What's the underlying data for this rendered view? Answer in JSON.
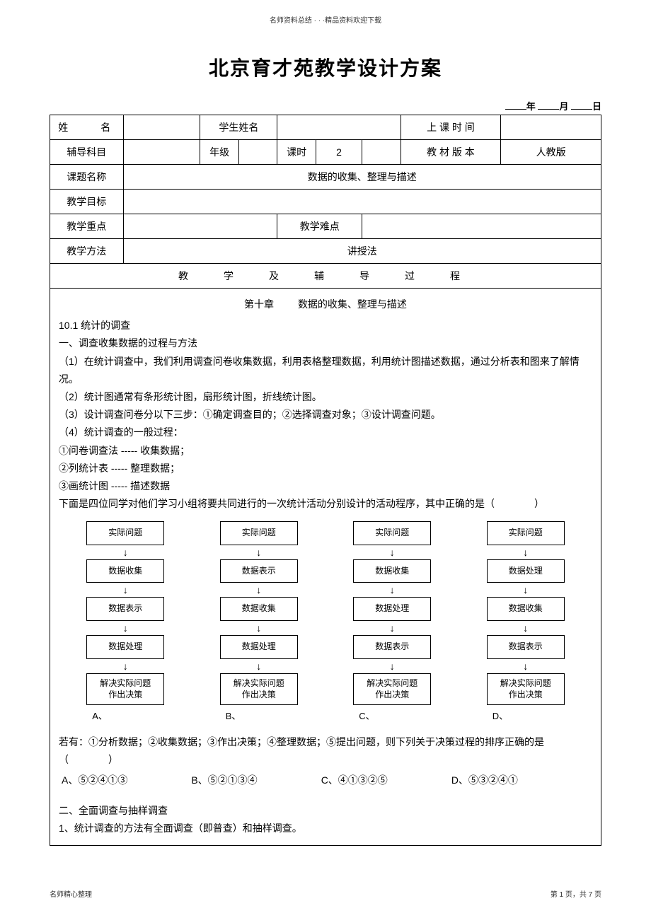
{
  "header_note": "名师资料总结 · · ·精品资料欢迎下载",
  "title": "北京育才苑教学设计方案",
  "date": {
    "year_label": "年",
    "month_label": "月",
    "day_label": "日"
  },
  "info_table": {
    "r1": {
      "name_label": "姓　　名",
      "student_label": "学生姓名",
      "time_label": "上 课 时 间"
    },
    "r2": {
      "subject_label": "辅导科目",
      "grade_label": "年级",
      "hours_label": "课时",
      "hours_val": "2",
      "textbook_label": "教 材 版 本",
      "textbook_val": "人教版"
    },
    "r3": {
      "topic_label": "课题名称",
      "topic_val": "数据的收集、整理与描述"
    },
    "r4": {
      "goal_label": "教学目标"
    },
    "r5": {
      "focus_label": "教学重点",
      "difficulty_label": "教学难点"
    },
    "r6": {
      "method_label": "教学方法",
      "method_val": "讲授法"
    }
  },
  "section_header": "教　学　及　辅　导　过　程",
  "chapter": {
    "no": "第十章",
    "name": "数据的收集、整理与描述"
  },
  "body": {
    "h1": "10.1 统计的调查",
    "h2": "一、调查收集数据的过程与方法",
    "p1": "（1）在统计调查中，我们利用调查问卷收集数据，利用表格整理数据，利用统计图描述数据，通过分析表和图来了解情况。",
    "p2": "（2）统计图通常有条形统计图，扇形统计图，折线统计图。",
    "p3": "（3）设计调查问卷分以下三步：①确定调查目的；②选择调查对象；③设计调查问题。",
    "p4": "（4）统计调查的一般过程：",
    "s1": "①问卷调查法 ----- 收集数据；",
    "s2": "②列统计表 ----- 整理数据；",
    "s3": "③画统计图 ----- 描述数据",
    "q1": "下面是四位同学对他们学习小组将要共同进行的一次统计活动分别设计的活动程序，其中正确的是（　　　　）"
  },
  "flowcharts": [
    {
      "label": "A、",
      "steps": [
        "实际问题",
        "数据收集",
        "数据表示",
        "数据处理",
        "解决实际问题\n作出决策"
      ]
    },
    {
      "label": "B、",
      "steps": [
        "实际问题",
        "数据表示",
        "数据收集",
        "数据处理",
        "解决实际问题\n作出决策"
      ]
    },
    {
      "label": "C、",
      "steps": [
        "实际问题",
        "数据收集",
        "数据处理",
        "数据表示",
        "解决实际问题\n作出决策"
      ]
    },
    {
      "label": "D、",
      "steps": [
        "实际问题",
        "数据处理",
        "数据收集",
        "数据表示",
        "解决实际问题\n作出决策"
      ]
    }
  ],
  "q2": {
    "text": "若有：①分析数据；②收集数据；③作出决策；④整理数据；⑤提出问题，则下列关于决策过程的排序正确的是（　　　　）",
    "opts": [
      "A、⑤②④①③",
      "B、⑤②①③④",
      "C、④①③②⑤",
      "D、⑤③②④①"
    ]
  },
  "h3": "二、全面调查与抽样调查",
  "p5": "1、统计调查的方法有全面调查（即普查）和抽样调查。",
  "footer": {
    "left": "名师精心整理",
    "right": "第 1 页，共 7 页"
  }
}
